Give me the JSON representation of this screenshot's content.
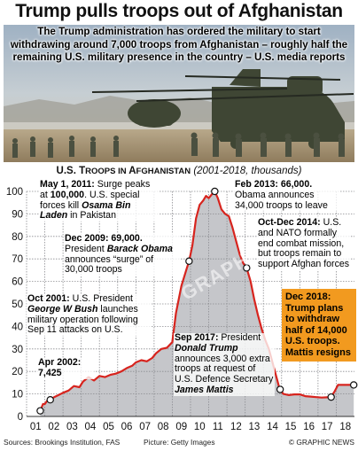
{
  "headline": "Trump pulls troops out of Afghanistan",
  "standfirst": "The Trump administration has ordered the military to start withdrawing around 7,000 troops from Afghanistan – roughly half the remaining U.S. military presence in the country – U.S. media reports",
  "chart_heading": {
    "title_lead": "U.S. T",
    "title_sc": "ROOPS IN ",
    "title_cap": "A",
    "title_sc2": "FGHANISTAN",
    "subtitle": "(2001-2018, thousands)"
  },
  "annotations": {
    "may2011_date": "May 1, 2011:",
    "may2011_text": " Surge peaks at ",
    "may2011_value": "100,000",
    "may2011_text2": ". U.S. special forces kill ",
    "may2011_name": "Osama Bin Laden",
    "may2011_text3": " in Pakistan",
    "feb2013_date": "Feb 2013: 66,000.",
    "feb2013_text": " Obama announces 34,000 troops to leave",
    "oct2014_date": "Oct-Dec 2014:",
    "oct2014_text": " U.S. and NATO formally end combat mission, but troops remain to support Afghan forces",
    "dec2009_date": "Dec 2009: 69,000.",
    "dec2009_text": " President ",
    "dec2009_name": "Barack Obama",
    "dec2009_text2": " announces “surge” of 30,000 troops",
    "oct2001_date": "Oct 2001:",
    "oct2001_text": " U.S. President ",
    "oct2001_name": "George W Bush",
    "oct2001_text2": " launches military operation following Sep 11 attacks on U.S.",
    "apr2002_date": "Apr 2002:",
    "apr2002_value": "7,425",
    "sep2017_date": "Sep 2017:",
    "sep2017_text": " President ",
    "sep2017_name": "Donald Trump",
    "sep2017_text2": " announces 3,000 extra troops at request of U.S. Defence Secretary ",
    "sep2017_name2": "James Mattis",
    "dec2018_text": "Dec 2018: Trump plans to withdraw half of 14,000 U.S. troops. Mattis resigns"
  },
  "footer": {
    "sources": "Sources: Brookings Institution, FAS",
    "picture": "Picture: Getty Images",
    "copyright": "© GRAPHIC NEWS"
  },
  "colors": {
    "line": "#d7241e",
    "area": "#c5c6ca",
    "grid": "#8b8c90",
    "marker_fill": "#ffffff",
    "highlight_box": "#f29a1f"
  },
  "chart_data": {
    "type": "area",
    "x_unit": "year",
    "xlim": [
      2001,
      2019
    ],
    "ylim": [
      0,
      100
    ],
    "yticks": [
      0,
      10,
      20,
      30,
      40,
      50,
      60,
      70,
      80,
      90,
      100
    ],
    "xtick_labels": [
      "01",
      "02",
      "03",
      "04",
      "05",
      "06",
      "07",
      "08",
      "09",
      "10",
      "11",
      "12",
      "13",
      "14",
      "15",
      "16",
      "17",
      "18"
    ],
    "grid": true,
    "series": [
      {
        "values_x": [
          2001.75,
          2001.9,
          2002.0,
          2002.15,
          2002.3,
          2002.5,
          2002.75,
          2003.0,
          2003.3,
          2003.6,
          2003.9,
          2004.1,
          2004.4,
          2004.7,
          2005.0,
          2005.3,
          2005.6,
          2005.9,
          2006.2,
          2006.5,
          2006.8,
          2007.0,
          2007.3,
          2007.6,
          2007.9,
          2008.1,
          2008.4,
          2008.7,
          2009.0,
          2009.2,
          2009.5,
          2009.8,
          2009.92,
          2010.1,
          2010.3,
          2010.5,
          2010.7,
          2010.85,
          2011.0,
          2011.2,
          2011.33,
          2011.5,
          2011.7,
          2011.9,
          2012.1,
          2012.3,
          2012.5,
          2012.7,
          2012.9,
          2013.08,
          2013.3,
          2013.5,
          2013.7,
          2013.9,
          2014.1,
          2014.3,
          2014.5,
          2014.7,
          2014.9,
          2015.1,
          2015.4,
          2015.7,
          2016.0,
          2016.3,
          2016.6,
          2016.9,
          2017.2,
          2017.5,
          2017.7,
          2017.9,
          2018.1,
          2018.4,
          2018.7,
          2018.96
        ],
        "values_y": [
          2.5,
          5.5,
          5.5,
          7.2,
          7.4,
          8.5,
          9.5,
          10.5,
          11.5,
          13.5,
          13.0,
          15.5,
          17.5,
          16.0,
          18.0,
          17.5,
          18.5,
          19.0,
          20.0,
          21.5,
          22.5,
          24.0,
          25.0,
          24.5,
          26.0,
          28.0,
          30.0,
          30.5,
          33.0,
          46.0,
          58.0,
          66.0,
          69.0,
          76.0,
          88.0,
          94.0,
          96.0,
          98.0,
          97.0,
          99.0,
          100.0,
          97.0,
          92.0,
          90.0,
          89.0,
          84.0,
          78.0,
          72.0,
          68.0,
          66.0,
          60.0,
          52.0,
          45.0,
          39.0,
          34.0,
          30.0,
          24.0,
          18.0,
          12.0,
          10.0,
          9.5,
          9.8,
          9.8,
          9.0,
          8.8,
          8.6,
          8.4,
          8.5,
          8.6,
          11.0,
          14.0,
          14.0,
          14.0,
          14.0
        ]
      }
    ],
    "marker_points_x": [
      2001.75,
      2002.3,
      2009.92,
      2011.33,
      2013.08,
      2014.92,
      2017.72,
      2018.96
    ],
    "marker_points_y": [
      2.5,
      7.4,
      69.0,
      100.0,
      66.0,
      12.0,
      8.6,
      14.0
    ]
  }
}
